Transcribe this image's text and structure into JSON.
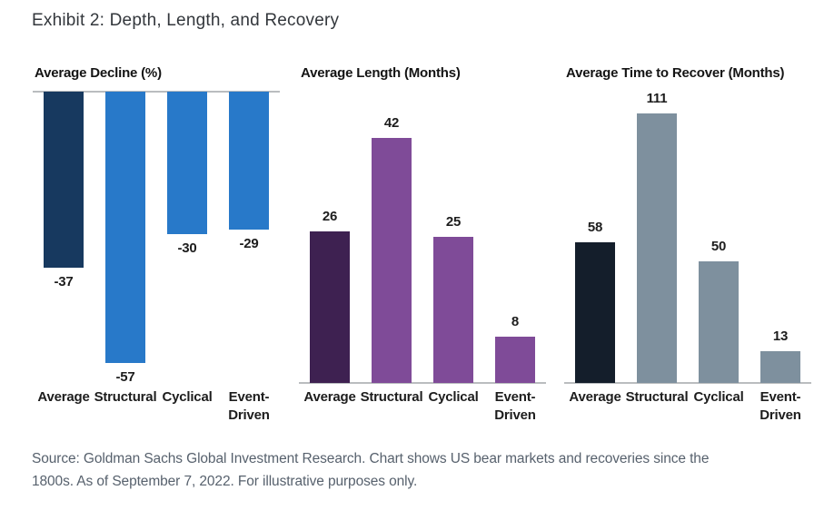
{
  "page": {
    "title": "Exhibit 2: Depth, Length, and Recovery"
  },
  "footer": {
    "line1": "Source: Goldman Sachs Global Investment Research. Chart shows US bear markets and recoveries since the",
    "line2": "1800s. As of September 7, 2022. For illustrative purposes only."
  },
  "colors": {
    "axis_line": "#babdbf",
    "text": "#1d1d1d",
    "source_text": "#57616d",
    "decline_highlight": "#17395f",
    "decline_default": "#2879c9",
    "length_highlight": "#3e2151",
    "length_default": "#7f4b98",
    "recover_highlight": "#141e2b",
    "recover_default": "#7e909e"
  },
  "chart_data": [
    {
      "type": "bar",
      "title": "Average Decline (%)",
      "categories": [
        "Average",
        "Structural",
        "Cyclical",
        "Event-Driven"
      ],
      "values": [
        -37,
        -57,
        -30,
        -29
      ],
      "value_labels": [
        "-37",
        "-57",
        "-30",
        "-29"
      ],
      "bar_colors": [
        "#17395f",
        "#2879c9",
        "#2879c9",
        "#2879c9"
      ],
      "direction": "down",
      "ylim": [
        -57,
        0
      ],
      "grid": false,
      "legend": "none"
    },
    {
      "type": "bar",
      "title": "Average Length (Months)",
      "categories": [
        "Average",
        "Structural",
        "Cyclical",
        "Event-Driven"
      ],
      "values": [
        26,
        42,
        25,
        8
      ],
      "value_labels": [
        "26",
        "42",
        "25",
        "8"
      ],
      "bar_colors": [
        "#3e2151",
        "#7f4b98",
        "#7f4b98",
        "#7f4b98"
      ],
      "direction": "up",
      "ylim": [
        0,
        42
      ],
      "grid": false,
      "legend": "none"
    },
    {
      "type": "bar",
      "title": "Average Time to Recover (Months)",
      "categories": [
        "Average",
        "Structural",
        "Cyclical",
        "Event-Driven"
      ],
      "values": [
        58,
        111,
        50,
        13
      ],
      "value_labels": [
        "58",
        "111",
        "50",
        "13"
      ],
      "bar_colors": [
        "#141e2b",
        "#7e909e",
        "#7e909e",
        "#7e909e"
      ],
      "direction": "up",
      "ylim": [
        0,
        111
      ],
      "grid": false,
      "legend": "none"
    }
  ]
}
